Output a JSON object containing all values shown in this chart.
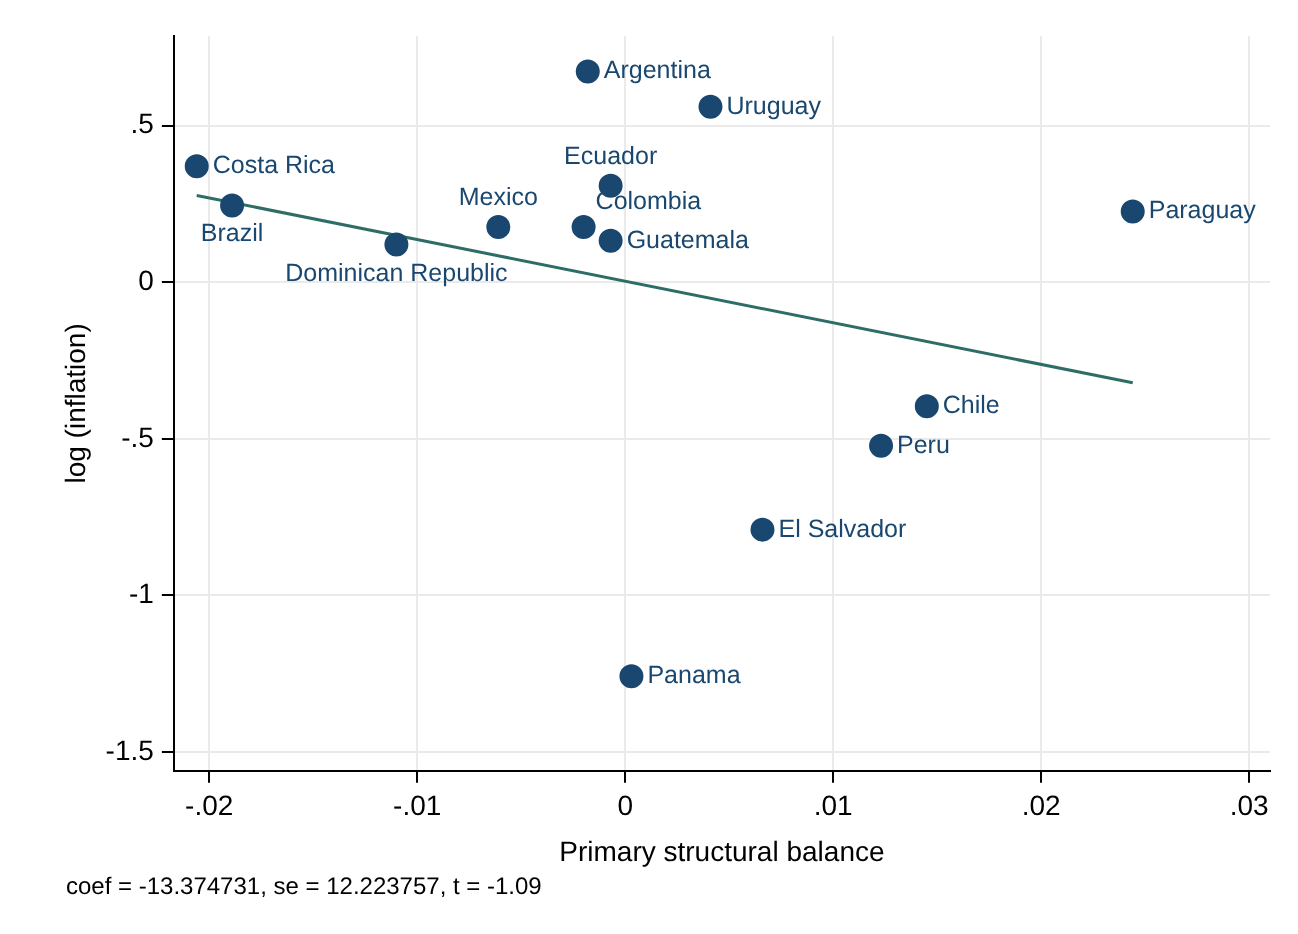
{
  "chart_data": {
    "type": "scatter",
    "xlabel": "Primary structural balance",
    "ylabel": "log (inflation)",
    "xlim": [
      -0.0217,
      0.031
    ],
    "ylim": [
      -1.56,
      0.786
    ],
    "xticks": [
      {
        "value": -0.02,
        "label": "-.02"
      },
      {
        "value": -0.01,
        "label": "-.01"
      },
      0,
      {
        "value": 0.01,
        "label": ".01"
      },
      {
        "value": 0.02,
        "label": ".02"
      },
      {
        "value": 0.03,
        "label": ".03"
      }
    ],
    "yticks": [
      {
        "value": -1.5,
        "label": "-1.5"
      },
      -1,
      {
        "value": -0.5,
        "label": "-.5"
      },
      0,
      {
        "value": 0.5,
        "label": ".5"
      }
    ],
    "grid": true,
    "legend": false,
    "series": [
      {
        "marker": "circle",
        "color": "#1a476f",
        "x": [
          -0.0206,
          -0.0189,
          -0.011,
          -0.0061,
          -0.002,
          -0.0007,
          -0.0007,
          -0.0018,
          0.0041,
          0.0244,
          0.0145,
          0.0123,
          0.0066,
          0.0003
        ],
        "values": [
          0.37,
          0.245,
          0.12,
          0.176,
          0.176,
          0.132,
          0.308,
          0.673,
          0.56,
          0.226,
          -0.396,
          -0.522,
          -0.79,
          -1.258
        ]
      },
      {
        "type": "line",
        "color": "#2d6d66",
        "x": [
          -0.0206,
          0.0244
        ],
        "values": [
          0.277,
          -0.321
        ]
      }
    ],
    "annotations": [
      {
        "text": "Costa Rica",
        "x": -0.0206,
        "y": 0.37
      },
      {
        "text": "Brazil",
        "x": -0.0189,
        "y": 0.245
      },
      {
        "text": "Dominican Republic",
        "x": -0.011,
        "y": 0.12
      },
      {
        "text": "Mexico",
        "x": -0.0061,
        "y": 0.176
      },
      {
        "text": "Colombia",
        "x": -0.002,
        "y": 0.176
      },
      {
        "text": "Guatemala",
        "x": -0.0007,
        "y": 0.132
      },
      {
        "text": "Ecuador",
        "x": -0.0007,
        "y": 0.308
      },
      {
        "text": "Argentina",
        "x": -0.0018,
        "y": 0.673
      },
      {
        "text": "Uruguay",
        "x": 0.0041,
        "y": 0.56
      },
      {
        "text": "Paraguay",
        "x": 0.0244,
        "y": 0.226
      },
      {
        "text": "Chile",
        "x": 0.0145,
        "y": -0.396
      },
      {
        "text": "Peru",
        "x": 0.0123,
        "y": -0.522
      },
      {
        "text": "El Salvador",
        "x": 0.0066,
        "y": -0.79
      },
      {
        "text": "Panama",
        "x": 0.0003,
        "y": -1.258
      },
      "coef = -13.374731, se = 12.223757, t = -1.09"
    ]
  }
}
